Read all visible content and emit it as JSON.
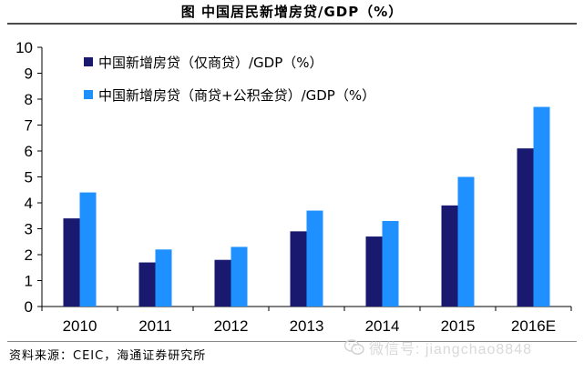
{
  "title": "图    中国居民新增房贷/GDP（%）",
  "source": "资料来源：CEIC，海通证券研究所",
  "watermark": {
    "icon": "wechat-icon",
    "text": "微信号: jiangchao8848"
  },
  "colors": {
    "series_0": "#191970",
    "series_1": "#1E90FF"
  },
  "chart_data": {
    "type": "bar",
    "categories": [
      "2010",
      "2011",
      "2012",
      "2013",
      "2014",
      "2015",
      "2016E"
    ],
    "series": [
      {
        "name": "中国新增房贷（仅商贷）/GDP（%）",
        "values": [
          3.4,
          1.7,
          1.8,
          2.9,
          2.7,
          3.9,
          6.1
        ]
      },
      {
        "name": "中国新增房贷（商贷+公积金贷）/GDP（%）",
        "values": [
          4.4,
          2.2,
          2.3,
          3.7,
          3.3,
          5.0,
          7.7
        ]
      }
    ],
    "y_ticks": [
      "0",
      "1",
      "2",
      "3",
      "4",
      "5",
      "6",
      "7",
      "8",
      "9",
      "10"
    ],
    "ylim": [
      0,
      10
    ],
    "grid": false,
    "legend_position": "top-left"
  }
}
